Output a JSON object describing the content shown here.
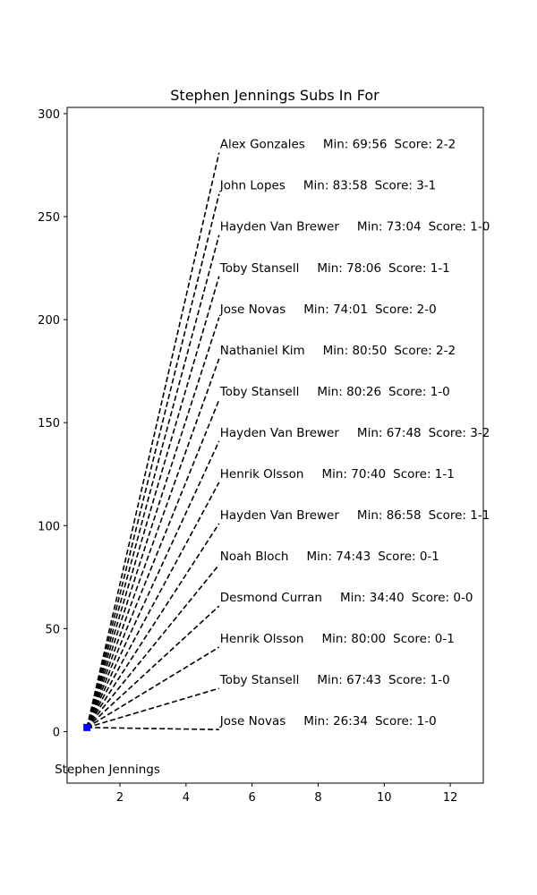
{
  "chart_data": {
    "type": "line",
    "title": "Stephen Jennings Subs In For",
    "xlabel": "",
    "ylabel": "",
    "xlim": [
      0.4,
      13.0
    ],
    "ylim": [
      -25,
      303
    ],
    "xticks": [
      2,
      4,
      6,
      8,
      10,
      12
    ],
    "yticks": [
      0,
      50,
      100,
      150,
      200,
      250,
      300
    ],
    "grid": false,
    "origin": {
      "label": "Stephen Jennings",
      "x": 1,
      "y": 2
    },
    "colors": {
      "lines": "#000000",
      "marker": "#0000ff"
    },
    "substitutions": [
      {
        "player": "Jose Novas",
        "minute": "26:34",
        "score": "1-0",
        "x": 5,
        "y": 1
      },
      {
        "player": "Toby Stansell",
        "minute": "67:43",
        "score": "1-0",
        "x": 5,
        "y": 21
      },
      {
        "player": "Henrik Olsson",
        "minute": "80:00",
        "score": "0-1",
        "x": 5,
        "y": 41
      },
      {
        "player": "Desmond Curran",
        "minute": "34:40",
        "score": "0-0",
        "x": 5,
        "y": 61
      },
      {
        "player": "Noah Bloch",
        "minute": "74:43",
        "score": "0-1",
        "x": 5,
        "y": 81
      },
      {
        "player": "Hayden Van Brewer",
        "minute": "86:58",
        "score": "1-1",
        "x": 5,
        "y": 101
      },
      {
        "player": "Henrik Olsson",
        "minute": "70:40",
        "score": "1-1",
        "x": 5,
        "y": 121
      },
      {
        "player": "Hayden Van Brewer",
        "minute": "67:48",
        "score": "3-2",
        "x": 5,
        "y": 141
      },
      {
        "player": "Toby Stansell",
        "minute": "80:26",
        "score": "1-0",
        "x": 5,
        "y": 161
      },
      {
        "player": "Nathaniel Kim",
        "minute": "80:50",
        "score": "2-2",
        "x": 5,
        "y": 181
      },
      {
        "player": "Jose Novas",
        "minute": "74:01",
        "score": "2-0",
        "x": 5,
        "y": 201
      },
      {
        "player": "Toby Stansell",
        "minute": "78:06",
        "score": "1-1",
        "x": 5,
        "y": 221
      },
      {
        "player": "Hayden Van Brewer",
        "minute": "73:04",
        "score": "1-0",
        "x": 5,
        "y": 241
      },
      {
        "player": "John Lopes",
        "minute": "83:58",
        "score": "3-1",
        "x": 5,
        "y": 261
      },
      {
        "player": "Alex Gonzales",
        "minute": "69:56",
        "score": "2-2",
        "x": 5,
        "y": 281
      }
    ]
  }
}
